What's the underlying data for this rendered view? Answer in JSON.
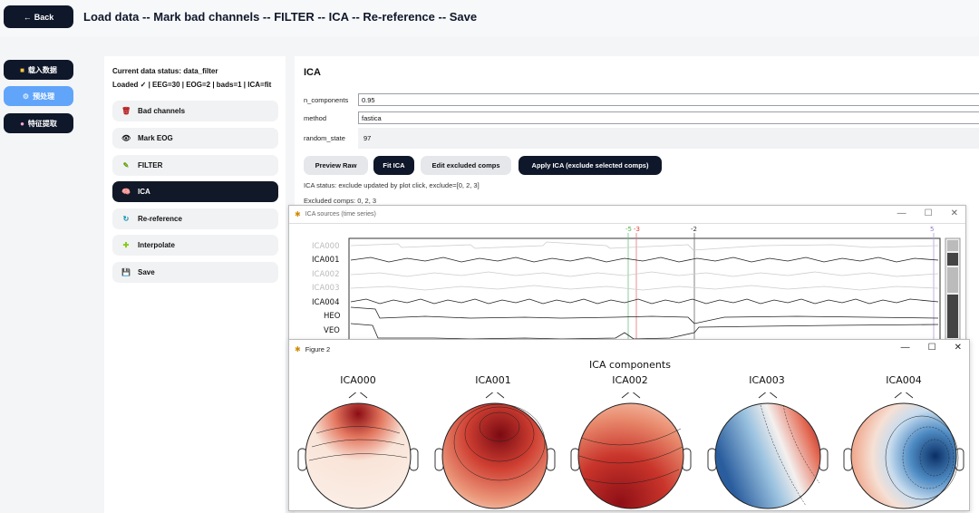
{
  "header": {
    "back_label": "Back",
    "back_arrow": "←",
    "pipeline": "Load data -- Mark bad channels -- FILTER -- ICA -- Re-reference -- Save"
  },
  "nav": {
    "load": "载入数据",
    "preprocess": "预处理",
    "features": "特征提取"
  },
  "status": {
    "line1": "Current data status: data_filter",
    "line2": "Loaded ✓ | EEG=30 | EOG=2 | bads=1 | ICA=fit"
  },
  "steps": [
    {
      "label": "Bad channels",
      "icon": "🗑"
    },
    {
      "label": "Mark EOG",
      "icon": "👁"
    },
    {
      "label": "FILTER",
      "icon": "✎"
    },
    {
      "label": "ICA",
      "icon": "🧠"
    },
    {
      "label": "Re-reference",
      "icon": "↻"
    },
    {
      "label": "Interpolate",
      "icon": "✚"
    },
    {
      "label": "Save",
      "icon": "💾"
    }
  ],
  "ica": {
    "title": "ICA",
    "fields": {
      "n_components_label": "n_components",
      "n_components_value": "0.95",
      "method_label": "method",
      "method_value": "fastica",
      "random_state_label": "random_state",
      "random_state_value": "97"
    },
    "buttons": {
      "preview": "Preview Raw",
      "fit": "Fit ICA",
      "edit": "Edit excluded comps",
      "apply": "Apply ICA (exclude selected comps)"
    },
    "status_text": "ICA status: exclude updated by plot click, exclude=[0, 2, 3]",
    "excluded_text": "Excluded comps: 0, 2, 3"
  },
  "sources_window": {
    "title": "ICA sources (time series)",
    "channels": [
      "ICA000",
      "ICA001",
      "ICA002",
      "ICA003",
      "ICA004",
      "HEO",
      "VEO"
    ],
    "excluded_channels": [
      "ICA000",
      "ICA002",
      "ICA003"
    ],
    "annotations": [
      "-5",
      "-3",
      "-2",
      "5"
    ]
  },
  "figure_window": {
    "title": "Figure 2",
    "figure_title": "ICA components",
    "components": [
      "ICA000",
      "ICA001",
      "ICA002",
      "ICA003",
      "ICA004"
    ]
  },
  "icons": {
    "back": "arrow-left-icon",
    "app": "matplotlib-icon",
    "minimize": "—",
    "maximize": "☐",
    "close": "✕"
  }
}
